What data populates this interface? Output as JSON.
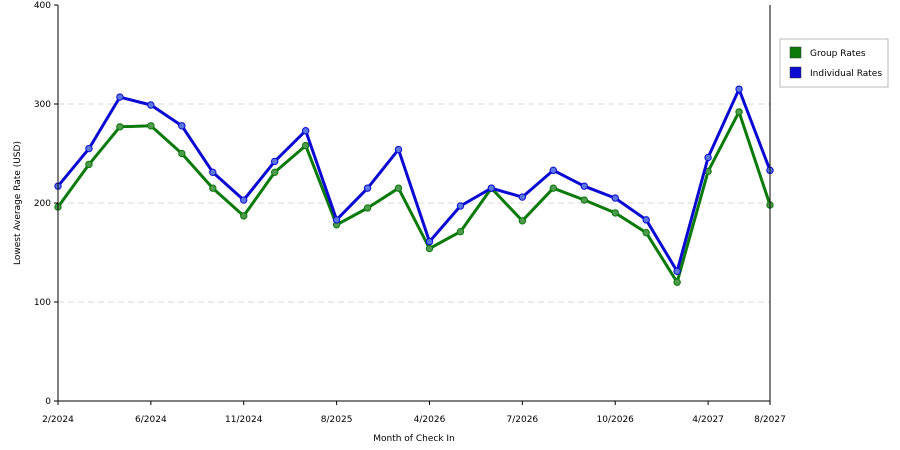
{
  "chart_data": {
    "type": "line",
    "title": "",
    "xlabel": "Month of Check In",
    "ylabel": "Lowest Average Rate (USD)",
    "ylim": [
      0,
      400
    ],
    "yticks": [
      "0",
      "100",
      "200",
      "300",
      "400"
    ],
    "grid": true,
    "legend_position": "right",
    "x_tick_labels": [
      {
        "label": "2/2024",
        "index": 0
      },
      {
        "label": "6/2024",
        "index": 3
      },
      {
        "label": "11/2024",
        "index": 6
      },
      {
        "label": "8/2025",
        "index": 9
      },
      {
        "label": "4/2026",
        "index": 12
      },
      {
        "label": "7/2026",
        "index": 15
      },
      {
        "label": "10/2026",
        "index": 18
      },
      {
        "label": "4/2027",
        "index": 21
      },
      {
        "label": "8/2027",
        "index": 23
      }
    ],
    "series": [
      {
        "name": "Group Rates",
        "color": "#0a7a0a",
        "marker_color": "#4f9a4f",
        "values": [
          196,
          239,
          277,
          278,
          250,
          215,
          187,
          231,
          258,
          178,
          195,
          215,
          154,
          171,
          215,
          182,
          215,
          203,
          190,
          170,
          120,
          232,
          292,
          198
        ]
      },
      {
        "name": "Individual Rates",
        "color": "#0a0ad2",
        "marker_color": "#5a78e0",
        "values": [
          217,
          255,
          307,
          299,
          278,
          231,
          203,
          242,
          273,
          183,
          215,
          254,
          161,
          197,
          215,
          206,
          233,
          217,
          205,
          183,
          131,
          246,
          315,
          233
        ]
      }
    ]
  }
}
